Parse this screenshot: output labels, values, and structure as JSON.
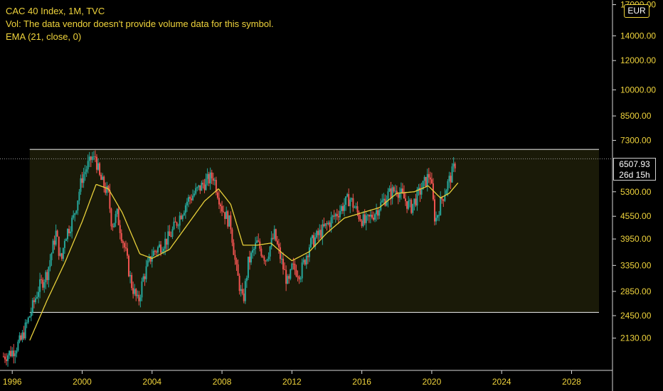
{
  "legend": {
    "symbol_line": "CAC 40 Index, 1M, TVC",
    "volume_line": "Vol: The data vendor doesn't provide volume data for this symbol.",
    "ema_line": "EMA (21, close, 0)"
  },
  "currency": "EUR",
  "last_price": {
    "value": "6507.93",
    "countdown": "26d 15h"
  },
  "colors": {
    "up": "#26a69a",
    "down": "#ef5350",
    "ema": "#e8d03a",
    "channel_fill": "#1a1a08",
    "channel_line": "#d8d8d8",
    "text": "#f0d43c"
  },
  "chart_data": {
    "type": "candlestick",
    "title": "CAC 40 Index, 1M, TVC",
    "y_scale": "log",
    "ylim": [
      1750,
      17500
    ],
    "xlim": [
      1995.3,
      2030.3
    ],
    "x_ticks": [
      "1996",
      "2000",
      "2004",
      "2008",
      "2012",
      "2016",
      "2020",
      "2024",
      "2028"
    ],
    "y_ticks": [
      "17000.00",
      "14000.00",
      "12000.00",
      "10000.00",
      "8500.00",
      "7300.00",
      "5300.00",
      "4550.00",
      "3950.00",
      "3350.00",
      "2850.00",
      "2450.00",
      "2130.00"
    ],
    "channel": {
      "upper": 6900,
      "lower": 2500,
      "x_start": 1997.0,
      "x_end": 2030.3
    },
    "close_series": [
      [
        1995.5,
        1900
      ],
      [
        1996.0,
        1960
      ],
      [
        1996.5,
        2100
      ],
      [
        1997.0,
        2450
      ],
      [
        1997.5,
        2900
      ],
      [
        1998.0,
        3200
      ],
      [
        1998.5,
        4100
      ],
      [
        1998.8,
        3400
      ],
      [
        1999.0,
        4000
      ],
      [
        1999.5,
        4500
      ],
      [
        2000.0,
        5800
      ],
      [
        2000.5,
        6500
      ],
      [
        2000.7,
        6800
      ],
      [
        2001.0,
        5800
      ],
      [
        2001.5,
        5200
      ],
      [
        2001.7,
        4300
      ],
      [
        2002.0,
        4600
      ],
      [
        2002.5,
        3600
      ],
      [
        2002.8,
        3000
      ],
      [
        2003.2,
        2650
      ],
      [
        2003.5,
        3100
      ],
      [
        2004.0,
        3600
      ],
      [
        2005.0,
        4000
      ],
      [
        2006.0,
        5000
      ],
      [
        2007.0,
        5600
      ],
      [
        2007.5,
        5850
      ],
      [
        2008.0,
        4800
      ],
      [
        2008.5,
        4300
      ],
      [
        2008.8,
        3300
      ],
      [
        2009.2,
        2650
      ],
      [
        2009.5,
        3400
      ],
      [
        2010.0,
        3850
      ],
      [
        2010.5,
        3500
      ],
      [
        2011.0,
        4050
      ],
      [
        2011.5,
        3300
      ],
      [
        2011.8,
        2950
      ],
      [
        2012.0,
        3300
      ],
      [
        2012.5,
        3200
      ],
      [
        2013.0,
        3800
      ],
      [
        2014.0,
        4300
      ],
      [
        2015.0,
        4900
      ],
      [
        2015.3,
        5100
      ],
      [
        2015.8,
        4600
      ],
      [
        2016.2,
        4350
      ],
      [
        2016.8,
        4700
      ],
      [
        2017.5,
        5200
      ],
      [
        2018.0,
        5400
      ],
      [
        2018.8,
        4800
      ],
      [
        2019.5,
        5500
      ],
      [
        2019.9,
        5950
      ],
      [
        2020.2,
        4400
      ],
      [
        2020.5,
        4950
      ],
      [
        2020.9,
        5550
      ],
      [
        2021.2,
        6000
      ],
      [
        2021.4,
        6507.93
      ]
    ],
    "ema_series": [
      [
        1997.0,
        2100
      ],
      [
        1998.0,
        2700
      ],
      [
        1999.0,
        3400
      ],
      [
        2000.0,
        4400
      ],
      [
        2000.8,
        5550
      ],
      [
        2001.5,
        5400
      ],
      [
        2002.3,
        4650
      ],
      [
        2003.3,
        3600
      ],
      [
        2004.0,
        3500
      ],
      [
        2005.0,
        3700
      ],
      [
        2006.0,
        4300
      ],
      [
        2007.0,
        5000
      ],
      [
        2007.8,
        5400
      ],
      [
        2008.5,
        4900
      ],
      [
        2009.2,
        3800
      ],
      [
        2010.0,
        3800
      ],
      [
        2010.8,
        3850
      ],
      [
        2011.5,
        3600
      ],
      [
        2012.0,
        3450
      ],
      [
        2013.0,
        3650
      ],
      [
        2014.0,
        4100
      ],
      [
        2015.0,
        4500
      ],
      [
        2016.0,
        4650
      ],
      [
        2017.0,
        4800
      ],
      [
        2018.0,
        5250
      ],
      [
        2019.0,
        5300
      ],
      [
        2019.8,
        5500
      ],
      [
        2020.5,
        5100
      ],
      [
        2021.0,
        5250
      ],
      [
        2021.5,
        5600
      ]
    ]
  }
}
